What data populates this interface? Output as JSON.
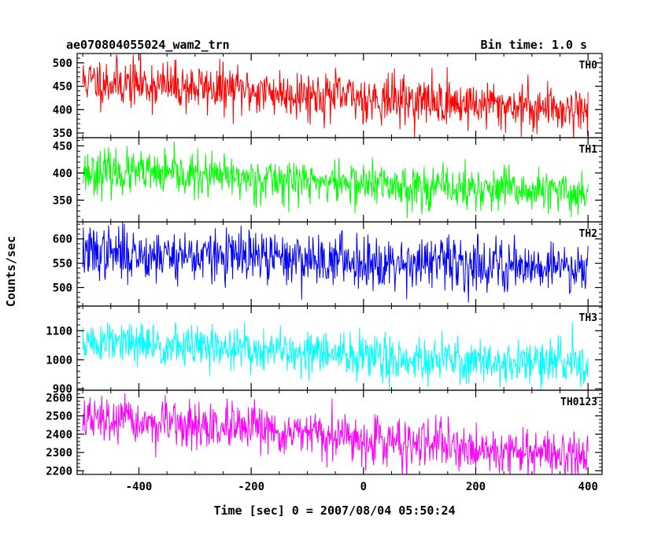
{
  "header": {
    "left_title": "ae070804055024_wam2_trn",
    "right_title": "Bin time: 1.0 s"
  },
  "axes": {
    "xlabel": "Time [sec] 0 = 2007/08/04 05:50:24",
    "ylabel": "Counts/sec"
  },
  "chart_data": {
    "type": "line",
    "title": "ae070804055024_wam2_trn",
    "subtitle": "Bin time: 1.0 s",
    "xlabel": "Time [sec] 0 = 2007/08/04 05:50:24",
    "ylabel": "Counts/sec",
    "xlim": [
      -510,
      425
    ],
    "x_ticks": [
      -400,
      -200,
      0,
      200,
      400
    ],
    "x_step": 1.0,
    "grid": false,
    "legend": "none",
    "panels": [
      {
        "name": "TH0",
        "color": "#ff0000",
        "ylim": [
          340,
          520
        ],
        "yticks": [
          350,
          400,
          450,
          500
        ],
        "trend": [
          [
            -500,
            462
          ],
          [
            -200,
            440
          ],
          [
            0,
            425
          ],
          [
            200,
            412
          ],
          [
            400,
            400
          ]
        ],
        "noise_sd": 26,
        "seed": 11
      },
      {
        "name": "TH1",
        "color": "#00ff00",
        "ylim": [
          310,
          465
        ],
        "yticks": [
          350,
          400,
          450
        ],
        "trend": [
          [
            -500,
            403
          ],
          [
            -200,
            390
          ],
          [
            0,
            380
          ],
          [
            200,
            370
          ],
          [
            400,
            362
          ]
        ],
        "noise_sd": 20,
        "seed": 23
      },
      {
        "name": "TH2",
        "color": "#0000ff",
        "ylim": [
          462,
          635
        ],
        "yticks": [
          500,
          550,
          600
        ],
        "trend": [
          [
            -500,
            572
          ],
          [
            -200,
            562
          ],
          [
            0,
            555
          ],
          [
            200,
            548
          ],
          [
            400,
            543
          ]
        ],
        "noise_sd": 27,
        "seed": 37
      },
      {
        "name": "TH3",
        "color": "#00ffff",
        "ylim": [
          895,
          1185
        ],
        "yticks": [
          900,
          1000,
          1100
        ],
        "trend": [
          [
            -500,
            1060
          ],
          [
            -200,
            1035
          ],
          [
            0,
            1010
          ],
          [
            200,
            995
          ],
          [
            400,
            985
          ]
        ],
        "noise_sd": 38,
        "seed": 51
      },
      {
        "name": "TH0123",
        "color": "#ff00ff",
        "ylim": [
          2180,
          2640
        ],
        "yticks": [
          2200,
          2300,
          2400,
          2500,
          2600
        ],
        "trend": [
          [
            -500,
            2480
          ],
          [
            -200,
            2420
          ],
          [
            0,
            2370
          ],
          [
            200,
            2320
          ],
          [
            400,
            2280
          ]
        ],
        "noise_sd": 62,
        "seed": 67
      }
    ]
  }
}
